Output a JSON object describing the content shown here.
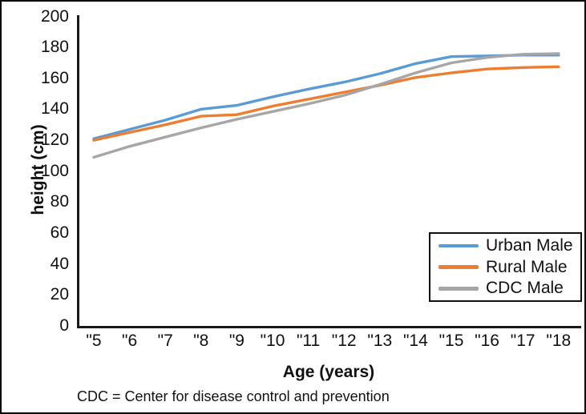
{
  "chart_data": {
    "type": "line",
    "title": "",
    "xlabel": "Age (years)",
    "ylabel": "height (cm)",
    "footnote": "CDC = Center for disease control and prevention",
    "categories": [
      "\"5",
      "\"6",
      "\"7",
      "\"8",
      "\"9",
      "\"10",
      "\"11",
      "\"12",
      "\"13",
      "\"14",
      "\"15",
      "\"16",
      "\"17",
      "\"18"
    ],
    "y_ticks": [
      200,
      180,
      160,
      140,
      120,
      100,
      80,
      60,
      40,
      20,
      0
    ],
    "ylim": [
      0,
      200
    ],
    "grid": false,
    "legend_position": "right-center-boxed",
    "axis_color": "#1a1a1a",
    "series": [
      {
        "name": "Urban Male",
        "color": "#5B9BD5",
        "values": [
          121,
          127,
          133,
          140,
          142.5,
          148,
          153,
          157.5,
          163,
          169.5,
          174,
          174.5,
          175,
          175
        ]
      },
      {
        "name": "Rural Male",
        "color": "#ED7D31",
        "values": [
          120,
          125,
          130,
          135.5,
          136.5,
          142,
          146.5,
          151,
          155.5,
          160.5,
          163.5,
          166,
          167,
          167.5
        ]
      },
      {
        "name": "CDC Male",
        "color": "#A6A6A6",
        "values": [
          109,
          116,
          122,
          128,
          133.5,
          138.5,
          143.5,
          149,
          156,
          163.5,
          170,
          173.5,
          175.5,
          176
        ]
      }
    ]
  }
}
